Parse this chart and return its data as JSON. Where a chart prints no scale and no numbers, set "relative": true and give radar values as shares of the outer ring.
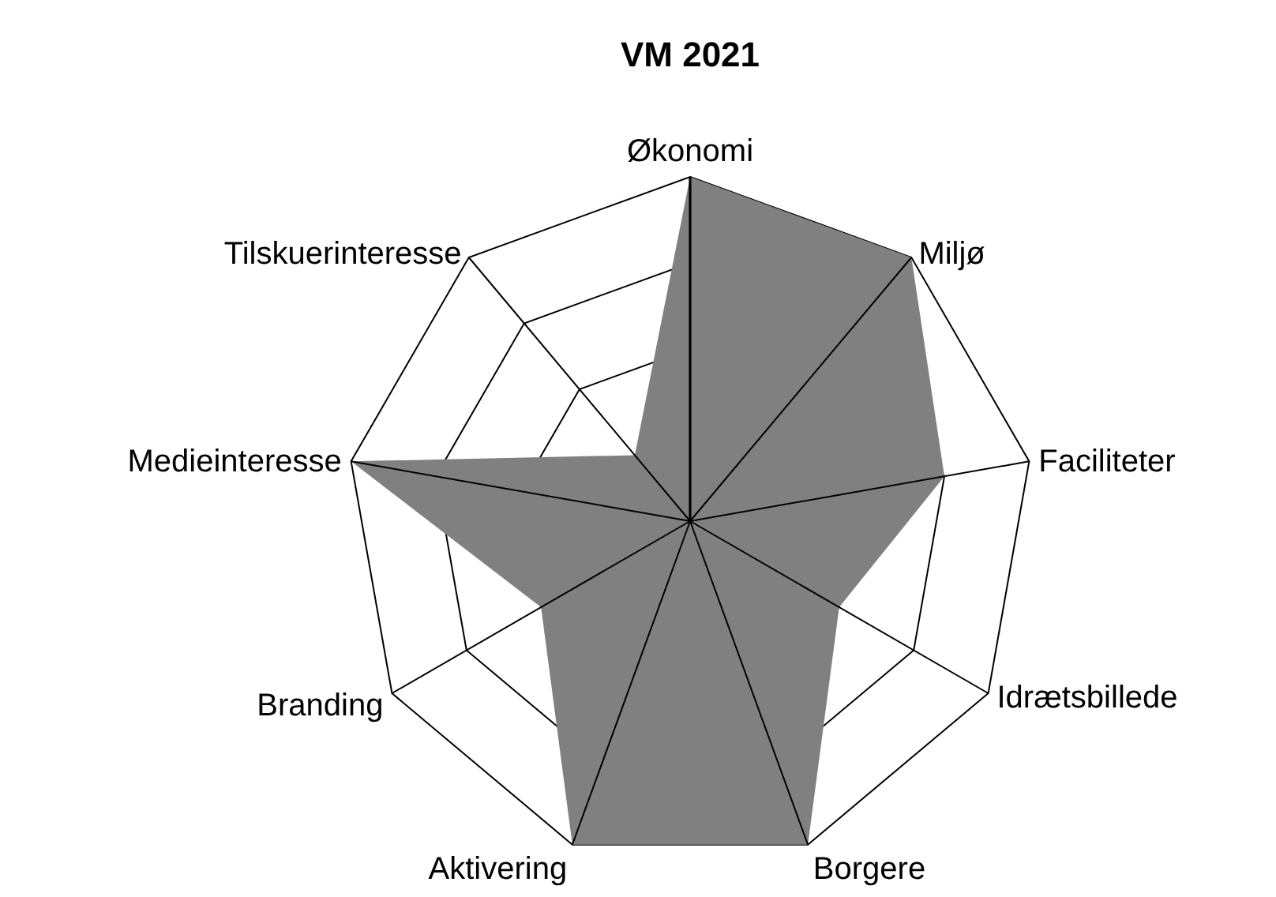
{
  "chart_data": {
    "type": "radar",
    "title": "VM 2021",
    "relative": true,
    "categories": [
      "Økonomi",
      "Miljø",
      "Faciliteter",
      "Idrætsbillede",
      "Borgere",
      "Aktivering",
      "Branding",
      "Medieinteresse",
      "Tilskuerinteresse"
    ],
    "series": [
      {
        "color": "#808080",
        "values": [
          1,
          1,
          0.75,
          0.5,
          1,
          1,
          0.5,
          1,
          0.25
        ]
      }
    ]
  }
}
